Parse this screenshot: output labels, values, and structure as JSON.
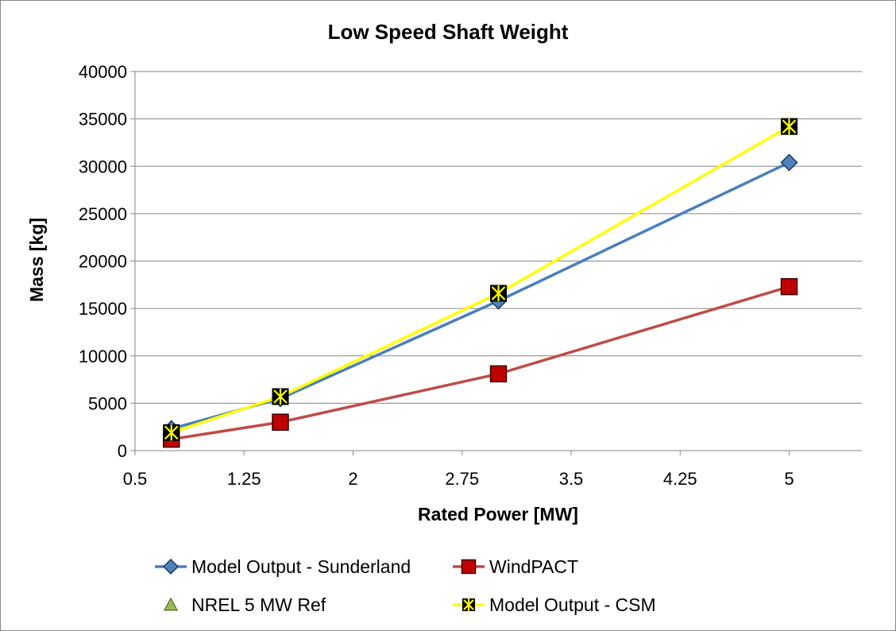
{
  "chart_data": {
    "type": "line",
    "title": "Low Speed Shaft Weight",
    "xlabel": "Rated Power [MW]",
    "ylabel": "Mass [kg]",
    "xlim": [
      0.5,
      5.5
    ],
    "ylim": [
      0,
      40000
    ],
    "xticks": [
      0.5,
      1.25,
      2,
      2.75,
      3.5,
      4.25,
      5
    ],
    "xtick_labels": [
      "0.5",
      "1.25",
      "2",
      "2.75",
      "3.5",
      "4.25",
      "5"
    ],
    "yticks": [
      0,
      5000,
      10000,
      15000,
      20000,
      25000,
      30000,
      35000,
      40000
    ],
    "ytick_labels": [
      "0",
      "5000",
      "10000",
      "15000",
      "20000",
      "25000",
      "30000",
      "35000",
      "40000"
    ],
    "grid": true,
    "legend_position": "bottom",
    "series": [
      {
        "name": "Model Output - Sunderland",
        "marker": "diamond",
        "line": true,
        "color": "#4a7ebb",
        "marker_fill": "#4f81bd",
        "x": [
          0.75,
          1.5,
          3.0,
          5.0
        ],
        "y": [
          2300,
          5500,
          15800,
          30400
        ]
      },
      {
        "name": "WindPACT",
        "marker": "square",
        "line": true,
        "color": "#be4b48",
        "marker_fill": "#c00000",
        "x": [
          0.75,
          1.5,
          3.0,
          5.0
        ],
        "y": [
          1200,
          3000,
          8100,
          17300
        ]
      },
      {
        "name": "NREL 5 MW Ref",
        "marker": "triangle",
        "line": false,
        "color": "#9bbb59",
        "marker_fill": "#9bbb59",
        "x": [],
        "y": []
      },
      {
        "name": "Model Output - CSM",
        "marker": "x-square",
        "line": true,
        "color": "#ffff00",
        "marker_fill": "#000000",
        "x": [
          0.75,
          1.5,
          3.0,
          5.0
        ],
        "y": [
          1900,
          5700,
          16600,
          34200
        ]
      }
    ]
  }
}
